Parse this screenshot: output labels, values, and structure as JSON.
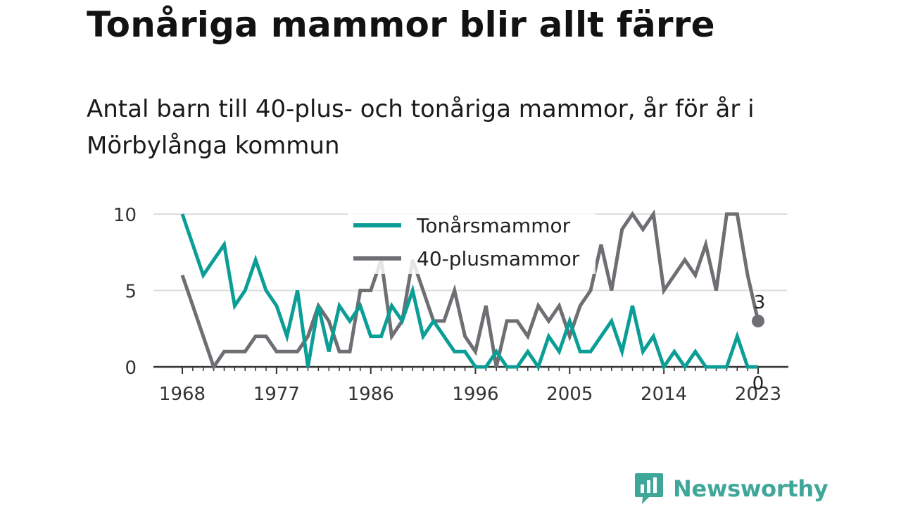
{
  "title": "Tonåriga mammor blir allt färre",
  "subtitle": "Antal barn till 40-plus- och tonåriga mammor, år för år i Mörbylånga kommun",
  "brand": {
    "name": "Newsworthy",
    "color": "#3fa79a",
    "icon": "newsworthy-logo-icon"
  },
  "colors": {
    "teen": "#0b9e96",
    "forty": "#6e6e73",
    "grid": "#dddddd",
    "axis": "#333333"
  },
  "chart_data": {
    "type": "line",
    "x": [
      1968,
      1969,
      1970,
      1971,
      1972,
      1973,
      1974,
      1975,
      1976,
      1977,
      1978,
      1979,
      1980,
      1981,
      1982,
      1983,
      1984,
      1985,
      1986,
      1987,
      1988,
      1989,
      1990,
      1991,
      1992,
      1993,
      1994,
      1995,
      1996,
      1997,
      1998,
      1999,
      2000,
      2001,
      2002,
      2003,
      2004,
      2005,
      2006,
      2007,
      2008,
      2009,
      2010,
      2011,
      2012,
      2013,
      2014,
      2015,
      2016,
      2017,
      2018,
      2019,
      2020,
      2021,
      2022,
      2023
    ],
    "series": [
      {
        "name": "Tonårsmammor",
        "color": "#0b9e96",
        "values": [
          10,
          8,
          6,
          7,
          8,
          4,
          5,
          7,
          5,
          4,
          2,
          5,
          0,
          4,
          1,
          4,
          3,
          4,
          2,
          2,
          4,
          3,
          5,
          2,
          3,
          2,
          1,
          1,
          0,
          0,
          1,
          0,
          0,
          1,
          0,
          2,
          1,
          3,
          1,
          1,
          2,
          3,
          1,
          4,
          1,
          2,
          0,
          1,
          0,
          1,
          0,
          0,
          0,
          2,
          0,
          0
        ]
      },
      {
        "name": "40-plusmammor",
        "color": "#6e6e73",
        "values": [
          6,
          4,
          2,
          0,
          1,
          1,
          1,
          2,
          2,
          1,
          1,
          1,
          2,
          4,
          3,
          1,
          1,
          5,
          5,
          7,
          2,
          3,
          7,
          5,
          3,
          3,
          5,
          2,
          1,
          4,
          0,
          3,
          3,
          2,
          4,
          3,
          4,
          2,
          4,
          5,
          8,
          5,
          9,
          10,
          9,
          10,
          5,
          6,
          7,
          6,
          8,
          5,
          10,
          10,
          6,
          3
        ]
      }
    ],
    "xticks": [
      "1968",
      "1977",
      "1986",
      "1996",
      "2005",
      "2014",
      "2023"
    ],
    "yticks": [
      "0",
      "5",
      "10"
    ],
    "ylim": [
      0,
      10
    ],
    "end_labels": [
      "0",
      "3"
    ],
    "legend": {
      "placement": "top-center"
    },
    "grid": true
  }
}
